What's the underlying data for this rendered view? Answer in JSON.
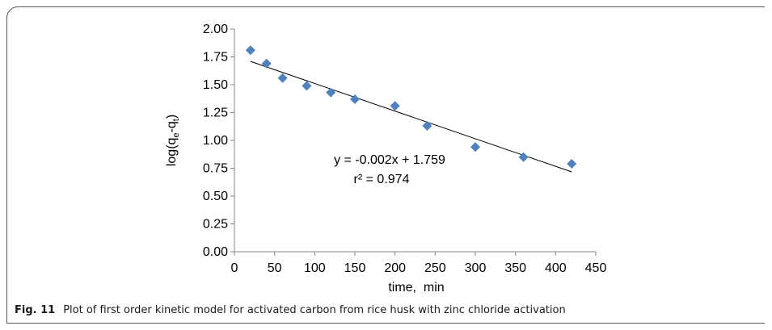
{
  "caption": {
    "label": "Fig. 11",
    "text": "Plot of first order kinetic model for activated carbon from rice husk with zinc chloride activation"
  },
  "chart_data": {
    "type": "scatter",
    "title": "",
    "xlabel": "time,  min",
    "ylabel_parts": {
      "base": "log(q",
      "sub1": "e",
      "mid": "-q",
      "sub2": "t",
      "end": ")"
    },
    "xlim": [
      0,
      450
    ],
    "ylim": [
      0,
      2.0
    ],
    "xticks": [
      "0",
      "50",
      "100",
      "150",
      "200",
      "250",
      "300",
      "350",
      "400",
      "450"
    ],
    "yticks": [
      "0.00",
      "0.25",
      "0.50",
      "0.75",
      "1.00",
      "1.25",
      "1.50",
      "1.75",
      "2.00"
    ],
    "grid": false,
    "legend": "none",
    "marker": "diamond",
    "marker_color": "#4f81bd",
    "x": [
      20,
      40,
      60,
      90,
      120,
      150,
      200,
      240,
      300,
      360,
      420
    ],
    "y": [
      1.81,
      1.69,
      1.56,
      1.49,
      1.43,
      1.37,
      1.31,
      1.13,
      0.94,
      0.85,
      0.79
    ],
    "trendline": {
      "slope": -0.00248,
      "intercept": 1.759,
      "x_start": 20,
      "x_end": 420,
      "color": "#000000"
    },
    "annotations": [
      "y = -0.002x + 1.759",
      "r² = 0.974"
    ]
  }
}
